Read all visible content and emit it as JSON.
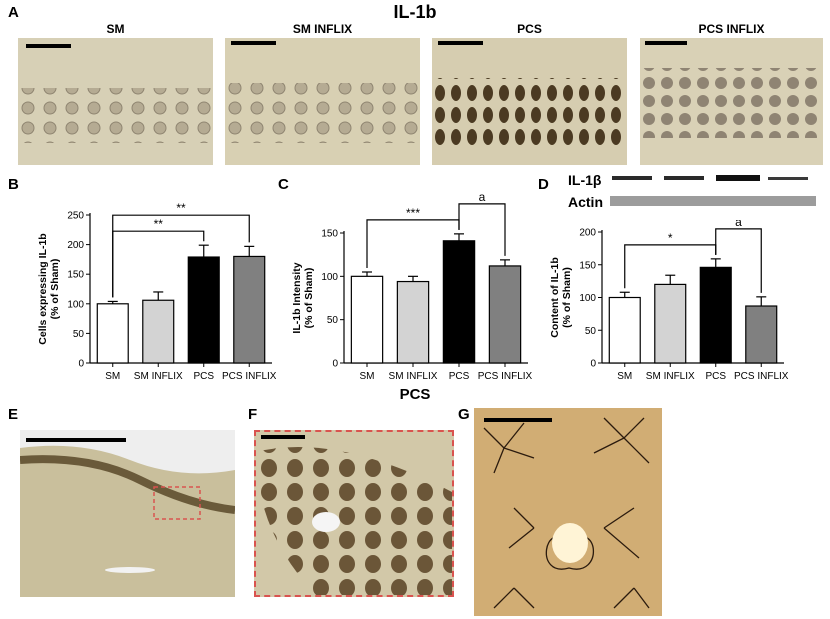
{
  "figure": {
    "main_title": "IL-1b",
    "subtitle_pcs": "PCS",
    "panel_letters": {
      "A": "A",
      "B": "B",
      "C": "C",
      "D": "D",
      "E": "E",
      "F": "F",
      "G": "G"
    },
    "micrograph_titles": [
      "SM",
      "SM INFLIX",
      "PCS",
      "PCS INFLIX"
    ]
  },
  "western_blot": {
    "band1": "IL-1β",
    "band2": "Actin"
  },
  "colors": {
    "SM": "#ffffff",
    "SM INFLIX": "#d3d3d3",
    "PCS": "#000000",
    "PCS INFLIX": "#808080",
    "tissue": "#d8cfb2",
    "inset_border": "#d9534f"
  },
  "chart_data": [
    {
      "type": "bar",
      "panel": "B",
      "categories": [
        "SM",
        "SM INFLIX",
        "PCS",
        "PCS INFLIX"
      ],
      "values": [
        100,
        106,
        179,
        180
      ],
      "errors": [
        4,
        14,
        20,
        17
      ],
      "ylabel": "Cells expressing IL-1b\n(%  of Sham)",
      "ylim": [
        0,
        250
      ],
      "yticks": [
        0,
        50,
        100,
        150,
        200,
        250
      ],
      "significance": [
        {
          "from": "SM",
          "to": "PCS",
          "label": "**"
        },
        {
          "from": "SM",
          "to": "PCS INFLIX",
          "label": "**"
        }
      ]
    },
    {
      "type": "bar",
      "panel": "C",
      "categories": [
        "SM",
        "SM INFLIX",
        "PCS",
        "PCS INFLIX"
      ],
      "values": [
        100,
        94,
        141,
        112
      ],
      "errors": [
        5,
        6,
        8,
        7
      ],
      "ylabel": "IL-1b Intensity\n(% of Sham)",
      "ylim": [
        0,
        150
      ],
      "yticks": [
        0,
        50,
        100,
        150
      ],
      "significance": [
        {
          "from": "SM",
          "to": "PCS",
          "label": "***"
        },
        {
          "from": "PCS",
          "to": "PCS INFLIX",
          "label": "a"
        }
      ]
    },
    {
      "type": "bar",
      "panel": "D",
      "categories": [
        "SM",
        "SM INFLIX",
        "PCS",
        "PCS INFLIX"
      ],
      "values": [
        100,
        120,
        146,
        87
      ],
      "errors": [
        8,
        14,
        13,
        14
      ],
      "ylabel": "Content of IL-1b\n(% of Sham)",
      "ylim": [
        0,
        200
      ],
      "yticks": [
        0,
        50,
        100,
        150,
        200
      ],
      "significance": [
        {
          "from": "SM",
          "to": "PCS",
          "label": "*"
        },
        {
          "from": "PCS",
          "to": "PCS INFLIX",
          "label": "a"
        }
      ]
    }
  ]
}
